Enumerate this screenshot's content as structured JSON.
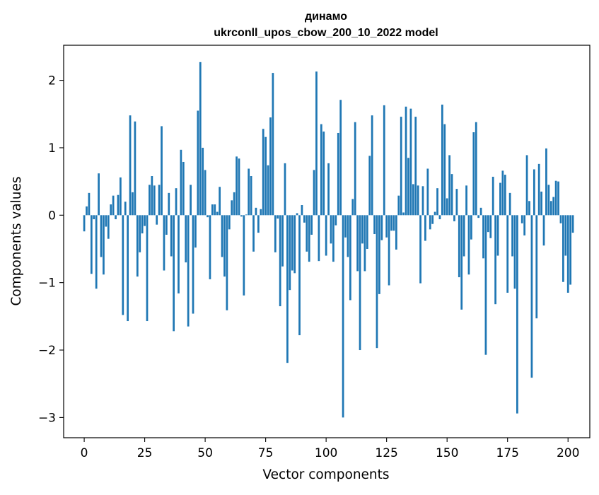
{
  "chart_data": {
    "type": "bar",
    "title": "динамо",
    "subtitle": "ukrconll_upos_cbow_200_10_2022 model",
    "xlabel": "Vector components",
    "ylabel": "Components values",
    "xlim": [
      -8.5,
      209
    ],
    "ylim": [
      -3.3,
      2.52
    ],
    "xticks": [
      0,
      25,
      50,
      75,
      100,
      125,
      150,
      175,
      200
    ],
    "yticks": [
      -3,
      -2,
      -1,
      0,
      1,
      2
    ],
    "bar_color": "#1f77b4",
    "values": [
      -0.24,
      0.13,
      0.33,
      -0.87,
      -0.06,
      -1.09,
      0.62,
      -0.62,
      -0.88,
      -0.17,
      -0.35,
      0.16,
      0.29,
      -0.06,
      0.3,
      0.56,
      -1.48,
      0.2,
      -1.57,
      1.48,
      0.34,
      1.39,
      -0.91,
      -0.55,
      -0.27,
      -0.16,
      -1.57,
      0.45,
      0.58,
      0.44,
      -0.14,
      0.45,
      1.32,
      -0.82,
      -0.29,
      0.33,
      -0.61,
      -1.72,
      0.4,
      -1.16,
      0.97,
      0.79,
      -0.7,
      -1.65,
      0.45,
      -1.46,
      -0.48,
      1.55,
      2.27,
      1.0,
      0.67,
      -0.03,
      -0.95,
      0.16,
      0.16,
      0.05,
      0.42,
      -0.62,
      -0.91,
      -1.41,
      -0.21,
      0.22,
      0.34,
      0.87,
      0.84,
      -0.02,
      -1.19,
      0.01,
      0.69,
      0.58,
      -0.54,
      0.11,
      -0.26,
      0.09,
      1.28,
      1.16,
      0.74,
      1.45,
      2.11,
      -0.55,
      -0.05,
      -1.35,
      -0.76,
      0.77,
      -2.19,
      -1.11,
      -0.82,
      -0.86,
      0.03,
      -1.78,
      0.15,
      -0.11,
      -0.54,
      -0.69,
      -0.29,
      0.67,
      2.13,
      -0.68,
      1.35,
      1.24,
      -0.6,
      0.77,
      -0.42,
      -0.69,
      -0.15,
      1.22,
      1.71,
      -3.0,
      -0.33,
      -0.62,
      -1.26,
      0.24,
      1.38,
      -0.83,
      -2.0,
      -0.42,
      -0.83,
      -0.5,
      0.88,
      1.48,
      -0.28,
      -1.97,
      -1.17,
      -0.37,
      1.63,
      -0.33,
      -1.04,
      -0.23,
      -0.23,
      -0.51,
      0.29,
      1.46,
      0.04,
      1.61,
      0.85,
      1.58,
      0.46,
      1.46,
      0.44,
      -1.01,
      0.43,
      -0.38,
      0.69,
      -0.21,
      -0.13,
      0.05,
      0.4,
      -0.06,
      1.64,
      1.35,
      0.25,
      0.89,
      0.61,
      -0.09,
      0.39,
      -0.92,
      -1.4,
      -0.61,
      0.44,
      -0.88,
      -0.36,
      1.23,
      1.38,
      -0.04,
      0.11,
      -0.64,
      -2.07,
      -0.25,
      -0.34,
      0.57,
      -1.32,
      -0.6,
      0.48,
      0.66,
      0.6,
      -1.15,
      0.33,
      -0.61,
      -1.09,
      -2.94,
      0.0,
      -0.12,
      -0.3,
      0.89,
      0.21,
      -2.41,
      0.68,
      -1.53,
      0.76,
      0.35,
      -0.45,
      0.99,
      0.45,
      0.21,
      0.27,
      0.51,
      0.5,
      -0.12,
      -0.99,
      -0.6,
      -1.15,
      -1.03,
      -0.26
    ]
  }
}
